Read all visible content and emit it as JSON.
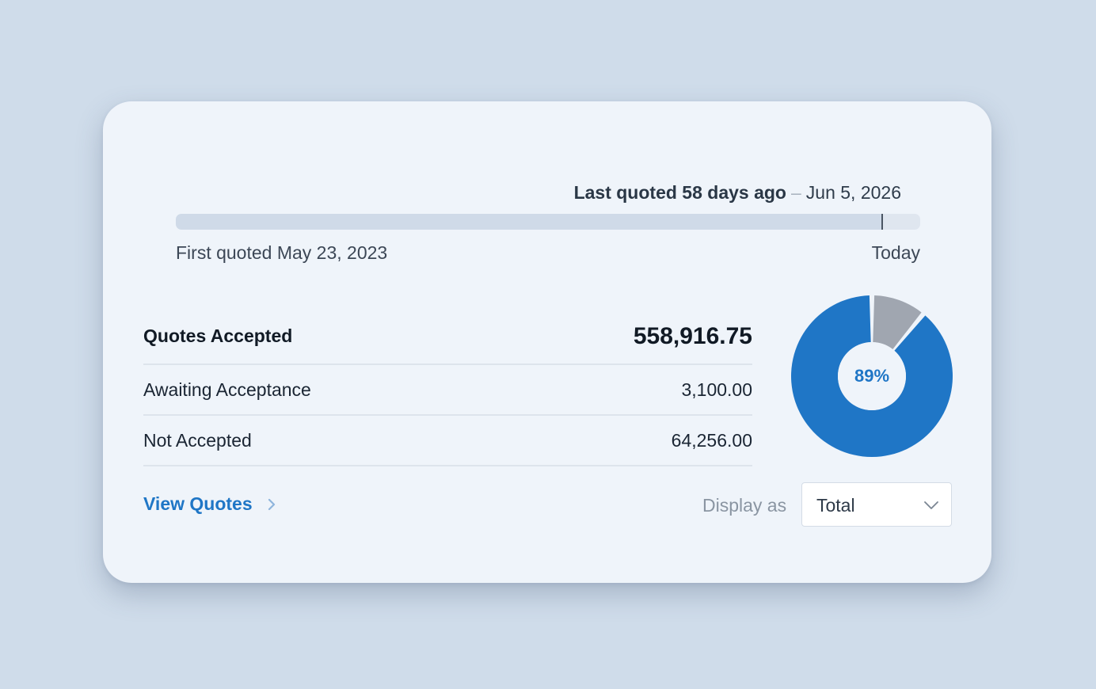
{
  "timeline": {
    "last_quoted_label": "Last quoted 58 days ago",
    "separator": "–",
    "last_quoted_date": "Jun 5, 2026",
    "first_quoted_label": "First quoted May 23, 2023",
    "end_label": "Today",
    "progress_fraction": 0.949
  },
  "summary": {
    "rows": [
      {
        "label": "Quotes Accepted",
        "value": "558,916.75"
      },
      {
        "label": "Awaiting Acceptance",
        "value": "3,100.00"
      },
      {
        "label": "Not Accepted",
        "value": "64,256.00"
      }
    ]
  },
  "donut": {
    "center_label": "89%",
    "segments": [
      {
        "name": "accepted",
        "fraction": 0.89,
        "color": "#1f76c6"
      },
      {
        "name": "other",
        "fraction": 0.11,
        "color": "#a0a6b0"
      }
    ]
  },
  "footer": {
    "view_quotes_label": "View Quotes",
    "display_as_label": "Display as",
    "display_as_value": "Total"
  },
  "icons": {
    "view_quotes": "chevron-right-icon",
    "select": "chevron-down-icon"
  },
  "colors": {
    "accent": "#1f76c6",
    "secondary_segment": "#a0a6b0"
  }
}
